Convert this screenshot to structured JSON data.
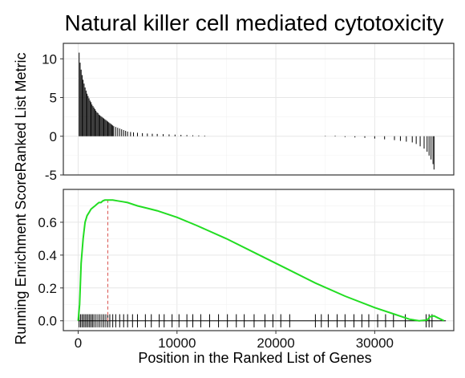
{
  "chart_data": [
    {
      "type": "bar",
      "panel": "ranked-list-metric",
      "title": "Natural killer cell mediated cytotoxicity",
      "ylabel": "Ranked List Metric",
      "xlabel": "",
      "xlim": [
        -1500,
        38000
      ],
      "ylim": [
        -5,
        12
      ],
      "yticks": [
        -5,
        0,
        5,
        10
      ],
      "yticklabels": [
        "-5",
        "0",
        "5",
        "10"
      ],
      "grid": true,
      "x": [
        100,
        200,
        300,
        400,
        500,
        600,
        700,
        800,
        900,
        1000,
        1100,
        1200,
        1300,
        1400,
        1500,
        1600,
        1700,
        1800,
        1900,
        2000,
        2100,
        2200,
        2300,
        2400,
        2500,
        2600,
        2700,
        2800,
        2900,
        3000,
        3100,
        3200,
        3300,
        3400,
        3500,
        3600,
        3800,
        4000,
        4200,
        4400,
        4600,
        4800,
        5000,
        5300,
        5600,
        6000,
        6500,
        7000,
        7500,
        8000,
        8600,
        9200,
        9800,
        10400,
        11000,
        11600,
        12200,
        12800,
        25000,
        26000,
        27000,
        28000,
        29000,
        30000,
        31000,
        32000,
        32600,
        33200,
        33800,
        34200,
        34600,
        35000,
        35300,
        35500,
        35700,
        35900,
        36000
      ],
      "values": [
        10.8,
        9.5,
        8.6,
        7.9,
        7.3,
        6.8,
        6.3,
        5.9,
        5.5,
        5.2,
        4.9,
        4.6,
        4.4,
        4.1,
        3.9,
        3.7,
        3.5,
        3.3,
        3.1,
        3.0,
        2.8,
        2.7,
        2.6,
        2.5,
        2.4,
        2.3,
        2.2,
        2.1,
        2.0,
        1.9,
        1.8,
        1.7,
        1.6,
        1.5,
        1.4,
        1.3,
        1.2,
        1.1,
        1.0,
        0.9,
        0.8,
        0.7,
        0.6,
        0.55,
        0.5,
        0.45,
        0.4,
        0.35,
        0.32,
        0.3,
        0.27,
        0.24,
        0.21,
        0.18,
        0.15,
        0.12,
        0.1,
        0.08,
        0.05,
        0.08,
        -0.1,
        -0.15,
        -0.2,
        -0.3,
        -0.4,
        -0.5,
        -0.6,
        -0.7,
        -0.8,
        -1.0,
        -1.3,
        -1.6,
        -2.0,
        -2.5,
        -3.0,
        -3.6,
        -4.3
      ]
    },
    {
      "type": "line",
      "panel": "running-enrichment-score",
      "ylabel": "Running Enrichment Score",
      "xlabel": "Position in the Ranked List of Genes",
      "xlim": [
        -1500,
        38000
      ],
      "ylim": [
        -0.06,
        0.8
      ],
      "xticks": [
        0,
        10000,
        20000,
        30000
      ],
      "xticklabels": [
        "0",
        "10000",
        "20000",
        "30000"
      ],
      "yticks": [
        0.0,
        0.2,
        0.4,
        0.6
      ],
      "yticklabels": [
        "0.0",
        "0.2",
        "0.4",
        "0.6"
      ],
      "grid": true,
      "peak_x": 3000,
      "x": [
        0,
        150,
        300,
        500,
        700,
        900,
        1100,
        1300,
        1500,
        1700,
        1900,
        2100,
        2300,
        2500,
        2700,
        3000,
        3500,
        4000,
        4500,
        5000,
        6000,
        7000,
        8000,
        10000,
        12000,
        15000,
        18000,
        21000,
        24000,
        27000,
        30000,
        32000,
        33500,
        34500,
        35300,
        35600,
        36000,
        36500,
        37000
      ],
      "y": [
        0.0,
        0.1,
        0.35,
        0.5,
        0.6,
        0.64,
        0.66,
        0.68,
        0.69,
        0.7,
        0.71,
        0.72,
        0.72,
        0.73,
        0.735,
        0.735,
        0.735,
        0.73,
        0.725,
        0.72,
        0.7,
        0.685,
        0.67,
        0.63,
        0.58,
        0.5,
        0.41,
        0.32,
        0.23,
        0.15,
        0.08,
        0.04,
        0.01,
        0.0,
        0.005,
        0.025,
        0.03,
        0.015,
        0.0
      ],
      "hits": [
        100,
        250,
        400,
        550,
        700,
        850,
        1000,
        1150,
        1300,
        1450,
        1600,
        1800,
        2000,
        2200,
        2400,
        2600,
        2800,
        3000,
        3200,
        3500,
        3800,
        4200,
        4600,
        5000,
        5500,
        6000,
        6800,
        7400,
        8200,
        8700,
        9500,
        10200,
        11000,
        11600,
        12400,
        13300,
        14200,
        15100,
        16000,
        16800,
        17800,
        18900,
        19700,
        20500,
        21400,
        24000,
        24600,
        25300,
        26200,
        27000,
        27900,
        28700,
        29400,
        30300,
        31100,
        31900,
        33100,
        35200,
        35500,
        35800
      ]
    }
  ]
}
